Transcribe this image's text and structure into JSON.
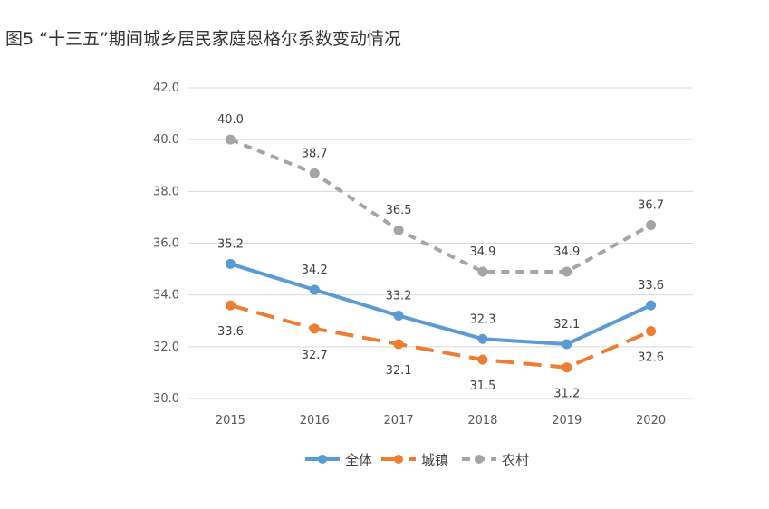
{
  "title": "图5 “十三五”期间城乡居民家庭恩格尔系数变动情况",
  "chart_data": {
    "type": "line",
    "title": "图5 “十三五”期间城乡居民家庭恩格尔系数变动情况",
    "xlabel": "",
    "ylabel": "",
    "categories": [
      "2015",
      "2016",
      "2017",
      "2018",
      "2019",
      "2020"
    ],
    "ylim": [
      30,
      42
    ],
    "yticks": [
      "30.0",
      "32.0",
      "34.0",
      "36.0",
      "38.0",
      "40.0",
      "42.0"
    ],
    "grid": true,
    "legend_position": "bottom",
    "series": [
      {
        "name": "全体",
        "color": "#5B9BD5",
        "dash": "solid",
        "values": [
          35.2,
          34.2,
          33.2,
          32.3,
          32.1,
          33.6
        ],
        "labels": [
          "35.2",
          "34.2",
          "33.2",
          "32.3",
          "32.1",
          "33.6"
        ],
        "label_side": "above"
      },
      {
        "name": "城镇",
        "color": "#ED7D31",
        "dash": "long-dash",
        "values": [
          33.6,
          32.7,
          32.1,
          31.5,
          31.2,
          32.6
        ],
        "labels": [
          "33.6",
          "32.7",
          "32.1",
          "31.5",
          "31.2",
          "32.6"
        ],
        "label_side": "below"
      },
      {
        "name": "农村",
        "color": "#A5A5A5",
        "dash": "short-dash",
        "values": [
          40.0,
          38.7,
          36.5,
          34.9,
          34.9,
          36.7
        ],
        "labels": [
          "40.0",
          "38.7",
          "36.5",
          "34.9",
          "34.9",
          "36.7"
        ],
        "label_side": "above"
      }
    ]
  }
}
